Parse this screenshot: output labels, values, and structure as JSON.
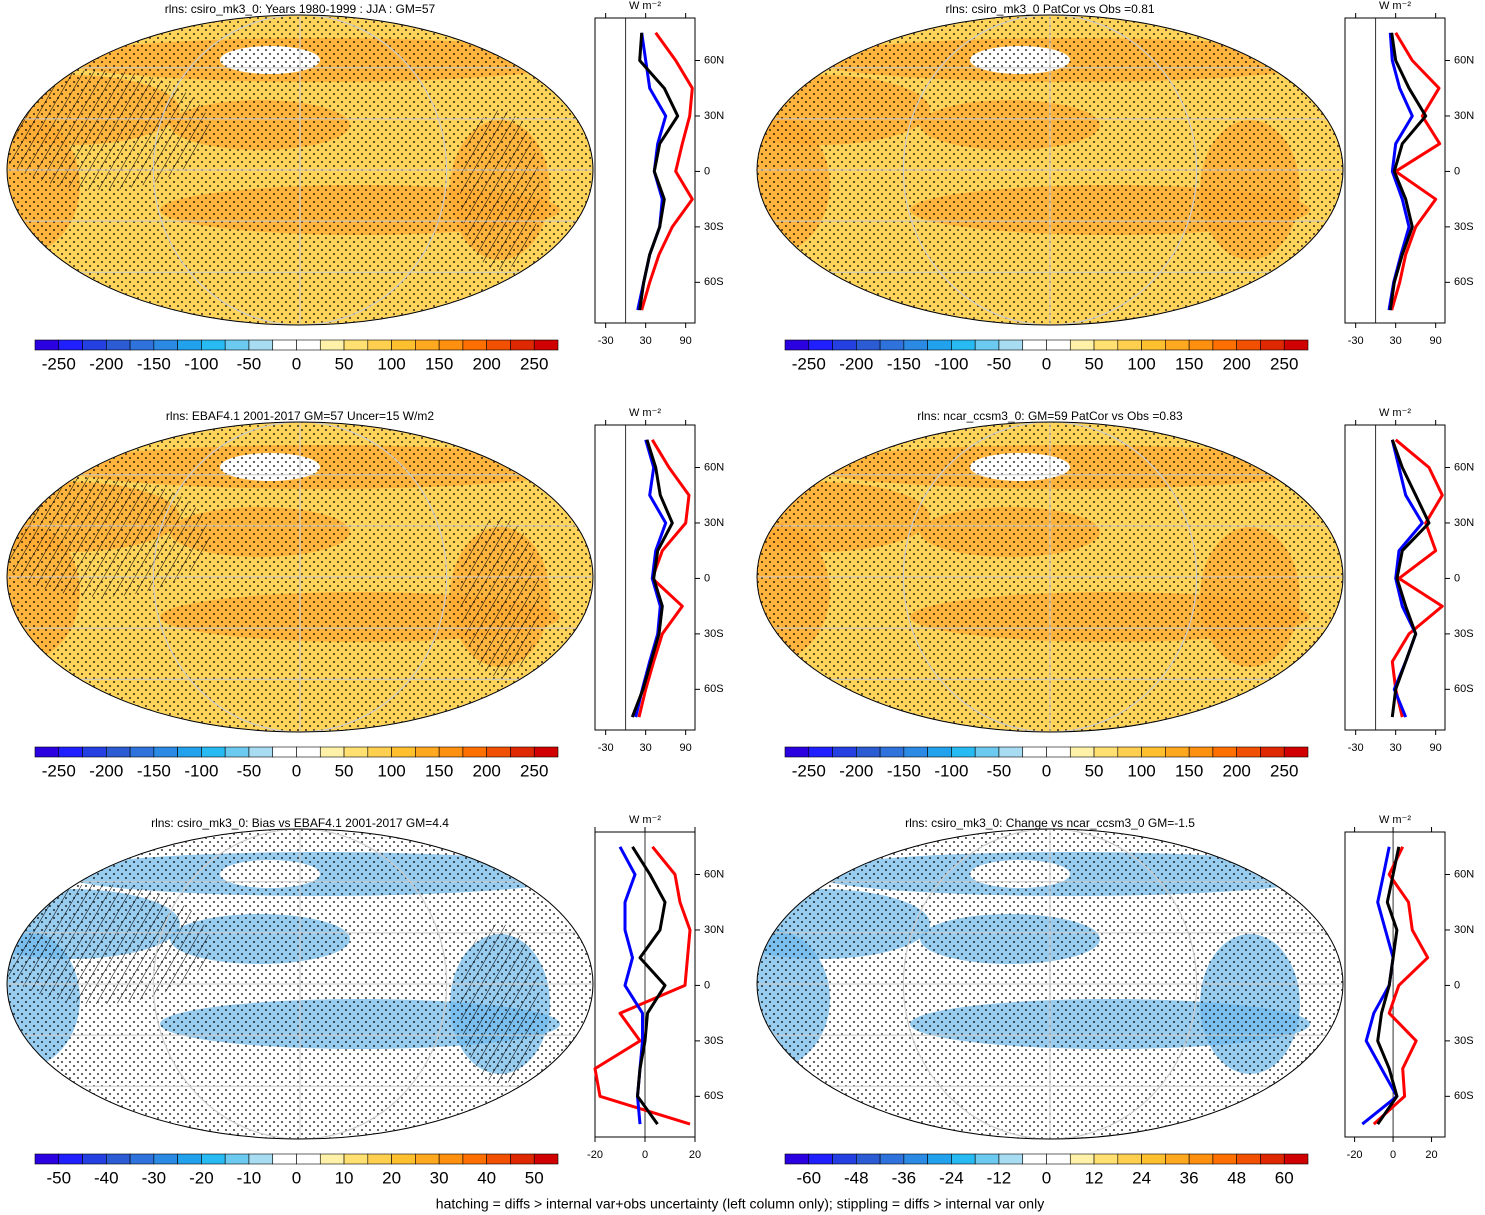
{
  "caption": "hatching = diffs > internal var+obs uncertainty (left column only); stippling = diffs > internal var only",
  "colormap": [
    "#2a00e0",
    "#1f1fff",
    "#2440e0",
    "#2c5cd4",
    "#2f72dc",
    "#2a8ae4",
    "#22a2ec",
    "#28baf2",
    "#6ccaf0",
    "#a8dcf2",
    "#ffffff",
    "#ffffff",
    "#fff2a8",
    "#ffe070",
    "#ffd050",
    "#ffc030",
    "#ffa820",
    "#ff9010",
    "#ff7000",
    "#f05000",
    "#e02800",
    "#d00000"
  ],
  "chart_data": [
    {
      "type": "map",
      "title": "rlns: csiro_mk3_0: Years 1980-1999 : JJA : GM=57",
      "colorbar": {
        "clim": [
          -275,
          275
        ],
        "ticks": [
          -250,
          -200,
          -150,
          -100,
          -50,
          0,
          50,
          100,
          150,
          200,
          250
        ]
      },
      "profile": {
        "type": "line",
        "unit": "W m⁻²",
        "y": [
          75,
          60,
          45,
          30,
          15,
          0,
          -15,
          -30,
          -45,
          -60,
          -75
        ],
        "xlim": [
          -46,
          104
        ],
        "xticks": [
          -30,
          30,
          90
        ],
        "ylim": [
          -82,
          83
        ],
        "yticks": [
          {
            "value": 60,
            "label": "60N"
          },
          {
            "value": 30,
            "label": "30N"
          },
          0,
          {
            "value": -30,
            "label": "30S"
          },
          {
            "value": -60,
            "label": "60S"
          }
        ],
        "series": [
          {
            "color": "#ff0000",
            "values": [
              45,
              75,
              100,
              96,
              85,
              75,
              100,
              70,
              50,
              36,
              24
            ]
          },
          {
            "color": "#0000ff",
            "values": [
              24,
              30,
              36,
              60,
              48,
              43,
              55,
              51,
              36,
              27,
              18
            ]
          },
          {
            "color": "#000000",
            "values": [
              24,
              21,
              58,
              78,
              51,
              43,
              58,
              51,
              36,
              27,
              21
            ]
          }
        ]
      }
    },
    {
      "type": "map",
      "title": "rlns: csiro_mk3_0 PatCor vs Obs =0.81",
      "colorbar": {
        "clim": [
          -275,
          275
        ],
        "ticks": [
          -250,
          -200,
          -150,
          -100,
          -50,
          0,
          50,
          100,
          150,
          200,
          250
        ]
      },
      "profile": {
        "type": "line",
        "unit": "W m⁻²",
        "y": [
          75,
          60,
          45,
          30,
          15,
          0,
          -15,
          -30,
          -45,
          -60,
          -75
        ],
        "xlim": [
          -46,
          104
        ],
        "xticks": [
          -30,
          30,
          90
        ],
        "ylim": [
          -82,
          83
        ],
        "yticks": [
          {
            "value": 60,
            "label": "60N"
          },
          {
            "value": 30,
            "label": "30N"
          },
          0,
          {
            "value": -30,
            "label": "30S"
          },
          {
            "value": -60,
            "label": "60S"
          }
        ],
        "series": [
          {
            "color": "#ff0000",
            "values": [
              30,
              55,
              95,
              70,
              96,
              30,
              90,
              60,
              45,
              36,
              24
            ]
          },
          {
            "color": "#0000ff",
            "values": [
              22,
              25,
              36,
              55,
              30,
              25,
              40,
              50,
              38,
              27,
              20
            ]
          },
          {
            "color": "#000000",
            "values": [
              24,
              30,
              50,
              75,
              40,
              28,
              45,
              55,
              40,
              28,
              22
            ]
          }
        ]
      }
    },
    {
      "type": "map",
      "title": "rlns: EBAF4.1 2001-2017 GM=57 Uncer=15 W/m2",
      "colorbar": {
        "clim": [
          -275,
          275
        ],
        "ticks": [
          -250,
          -200,
          -150,
          -100,
          -50,
          0,
          50,
          100,
          150,
          200,
          250
        ]
      },
      "profile": {
        "type": "line",
        "unit": "W m⁻²",
        "y": [
          75,
          60,
          45,
          30,
          15,
          0,
          -15,
          -30,
          -45,
          -60,
          -75
        ],
        "xlim": [
          -46,
          104
        ],
        "xticks": [
          -30,
          30,
          90
        ],
        "ylim": [
          -82,
          83
        ],
        "yticks": [
          {
            "value": 60,
            "label": "60N"
          },
          {
            "value": 30,
            "label": "30N"
          },
          0,
          {
            "value": -30,
            "label": "30S"
          },
          {
            "value": -60,
            "label": "60S"
          }
        ],
        "series": [
          {
            "color": "#ff0000",
            "values": [
              40,
              65,
              95,
              90,
              55,
              40,
              85,
              55,
              42,
              30,
              20
            ]
          },
          {
            "color": "#0000ff",
            "values": [
              30,
              42,
              36,
              60,
              45,
              40,
              52,
              48,
              36,
              25,
              15
            ]
          },
          {
            "color": "#000000",
            "values": [
              32,
              45,
              52,
              70,
              48,
              42,
              55,
              50,
              38,
              26,
              10
            ]
          }
        ]
      }
    },
    {
      "type": "map",
      "title": "rlns: ncar_ccsm3_0: GM=59 PatCor vs Obs =0.83",
      "colorbar": {
        "clim": [
          -275,
          275
        ],
        "ticks": [
          -250,
          -200,
          -150,
          -100,
          -50,
          0,
          50,
          100,
          150,
          200,
          250
        ]
      },
      "profile": {
        "type": "line",
        "unit": "W m⁻²",
        "y": [
          75,
          60,
          45,
          30,
          15,
          0,
          -15,
          -30,
          -45,
          -60,
          -75
        ],
        "xlim": [
          -46,
          104
        ],
        "xticks": [
          -30,
          30,
          90
        ],
        "ylim": [
          -82,
          83
        ],
        "yticks": [
          {
            "value": 60,
            "label": "60N"
          },
          {
            "value": 30,
            "label": "30N"
          },
          0,
          {
            "value": -30,
            "label": "30S"
          },
          {
            "value": -60,
            "label": "60S"
          }
        ],
        "series": [
          {
            "color": "#ff0000",
            "values": [
              30,
              80,
              100,
              75,
              90,
              35,
              100,
              50,
              25,
              30,
              40
            ]
          },
          {
            "color": "#0000ff",
            "values": [
              25,
              35,
              45,
              70,
              35,
              30,
              40,
              60,
              45,
              28,
              45
            ]
          },
          {
            "color": "#000000",
            "values": [
              25,
              40,
              60,
              80,
              40,
              32,
              45,
              60,
              45,
              30,
              25
            ]
          }
        ]
      }
    },
    {
      "type": "map",
      "title": "rlns: csiro_mk3_0: Bias vs EBAF4.1 2001-2017 GM=4.4",
      "colorbar": {
        "clim": [
          -55,
          55
        ],
        "ticks": [
          -50,
          -40,
          -30,
          -20,
          -10,
          0,
          10,
          20,
          30,
          40,
          50
        ]
      },
      "profile": {
        "type": "line",
        "unit": "W m⁻²",
        "y": [
          75,
          60,
          45,
          30,
          15,
          0,
          -15,
          -30,
          -45,
          -60,
          -75
        ],
        "xlim": [
          -20,
          20
        ],
        "xticks": [
          -20,
          0,
          20
        ],
        "ylim": [
          -82,
          83
        ],
        "yticks": [
          {
            "value": 60,
            "label": "60N"
          },
          {
            "value": 30,
            "label": "30N"
          },
          0,
          {
            "value": -30,
            "label": "30S"
          },
          {
            "value": -60,
            "label": "60S"
          }
        ],
        "series": [
          {
            "color": "#ff0000",
            "values": [
              3,
              12,
              14,
              18,
              17,
              16,
              -10,
              -2,
              -20,
              -18,
              18
            ]
          },
          {
            "color": "#0000ff",
            "values": [
              -10,
              -4,
              -8,
              -8,
              -5,
              -8,
              -1,
              -1,
              -2,
              -3,
              -2
            ]
          },
          {
            "color": "#000000",
            "values": [
              -5,
              2,
              8,
              6,
              -2,
              8,
              1,
              0,
              -2,
              -3,
              5
            ]
          }
        ]
      }
    },
    {
      "type": "map",
      "title": "rlns: csiro_mk3_0: Change vs ncar_ccsm3_0 GM=-1.5",
      "colorbar": {
        "clim": [
          -66,
          66
        ],
        "ticks": [
          -60,
          -48,
          -36,
          -24,
          -12,
          0,
          12,
          24,
          36,
          48,
          60
        ]
      },
      "profile": {
        "type": "line",
        "unit": "W m⁻²",
        "y": [
          75,
          60,
          45,
          30,
          15,
          0,
          -15,
          -30,
          -45,
          -60,
          -75
        ],
        "xlim": [
          -25,
          27
        ],
        "xticks": [
          -20,
          0,
          20
        ],
        "ylim": [
          -82,
          83
        ],
        "yticks": [
          {
            "value": 60,
            "label": "60N"
          },
          {
            "value": 30,
            "label": "30N"
          },
          0,
          {
            "value": -30,
            "label": "30S"
          },
          {
            "value": -60,
            "label": "60S"
          }
        ],
        "series": [
          {
            "color": "#ff0000",
            "values": [
              5,
              -2,
              8,
              10,
              18,
              3,
              -2,
              12,
              5,
              6,
              -10
            ]
          },
          {
            "color": "#0000ff",
            "values": [
              -2,
              -5,
              -8,
              -4,
              0,
              -2,
              -10,
              -14,
              -6,
              2,
              -16
            ]
          },
          {
            "color": "#000000",
            "values": [
              3,
              0,
              -3,
              2,
              0,
              -2,
              -6,
              -8,
              -2,
              2,
              -8
            ]
          }
        ]
      }
    }
  ]
}
